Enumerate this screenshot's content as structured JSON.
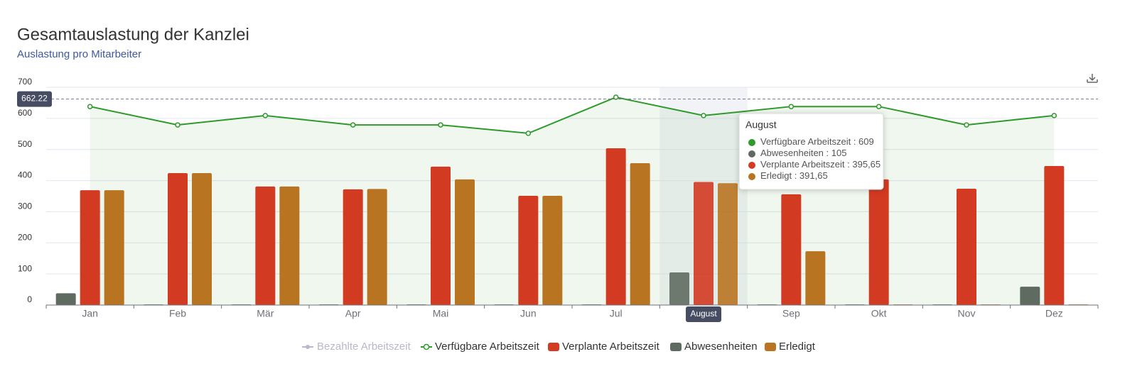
{
  "chart_data": {
    "type": "bar",
    "title": "Gesamtauslastung der Kanzlei",
    "subtitle": "Auslastung pro Mitarbeiter",
    "categories": [
      "Jan",
      "Feb",
      "Mär",
      "Apr",
      "Mai",
      "Jun",
      "Jul",
      "August",
      "Sep",
      "Okt",
      "Nov",
      "Dez"
    ],
    "hidden_series": {
      "name": "Bezahlte Arbeitszeit",
      "color": "#b8b8c8"
    },
    "series": [
      {
        "name": "Verfügbare Arbeitszeit",
        "type": "line",
        "color": "#2e9a2a",
        "values": [
          638,
          579,
          609,
          579,
          579,
          552,
          668,
          609,
          638,
          638,
          579,
          609
        ]
      },
      {
        "name": "Verplante Arbeitszeit",
        "type": "bar",
        "color": "#d23a22",
        "values": [
          369,
          424,
          381,
          372,
          445,
          351,
          504,
          395.65,
          356,
          404,
          374,
          447
        ]
      },
      {
        "name": "Abwesenheiten",
        "type": "bar",
        "color": "#5f6b60",
        "values": [
          38,
          2,
          2,
          2,
          2,
          2,
          2,
          105,
          2,
          2,
          2,
          59
        ]
      },
      {
        "name": "Erledigt",
        "type": "bar",
        "color": "#b87421",
        "values": [
          369,
          424,
          381,
          373,
          404,
          351,
          456,
          391.65,
          173,
          2,
          2,
          2
        ]
      }
    ],
    "markline": 662.22,
    "ylim": [
      0,
      700
    ],
    "yticks": [
      0,
      100,
      200,
      300,
      400,
      500,
      600,
      700
    ],
    "grid": true,
    "highlight_index": 7,
    "tooltip": {
      "separator": " : ",
      "series_order": [
        0,
        2,
        1,
        3
      ],
      "value_labels": [
        "609",
        "105",
        "395,65",
        "391,65"
      ]
    }
  }
}
